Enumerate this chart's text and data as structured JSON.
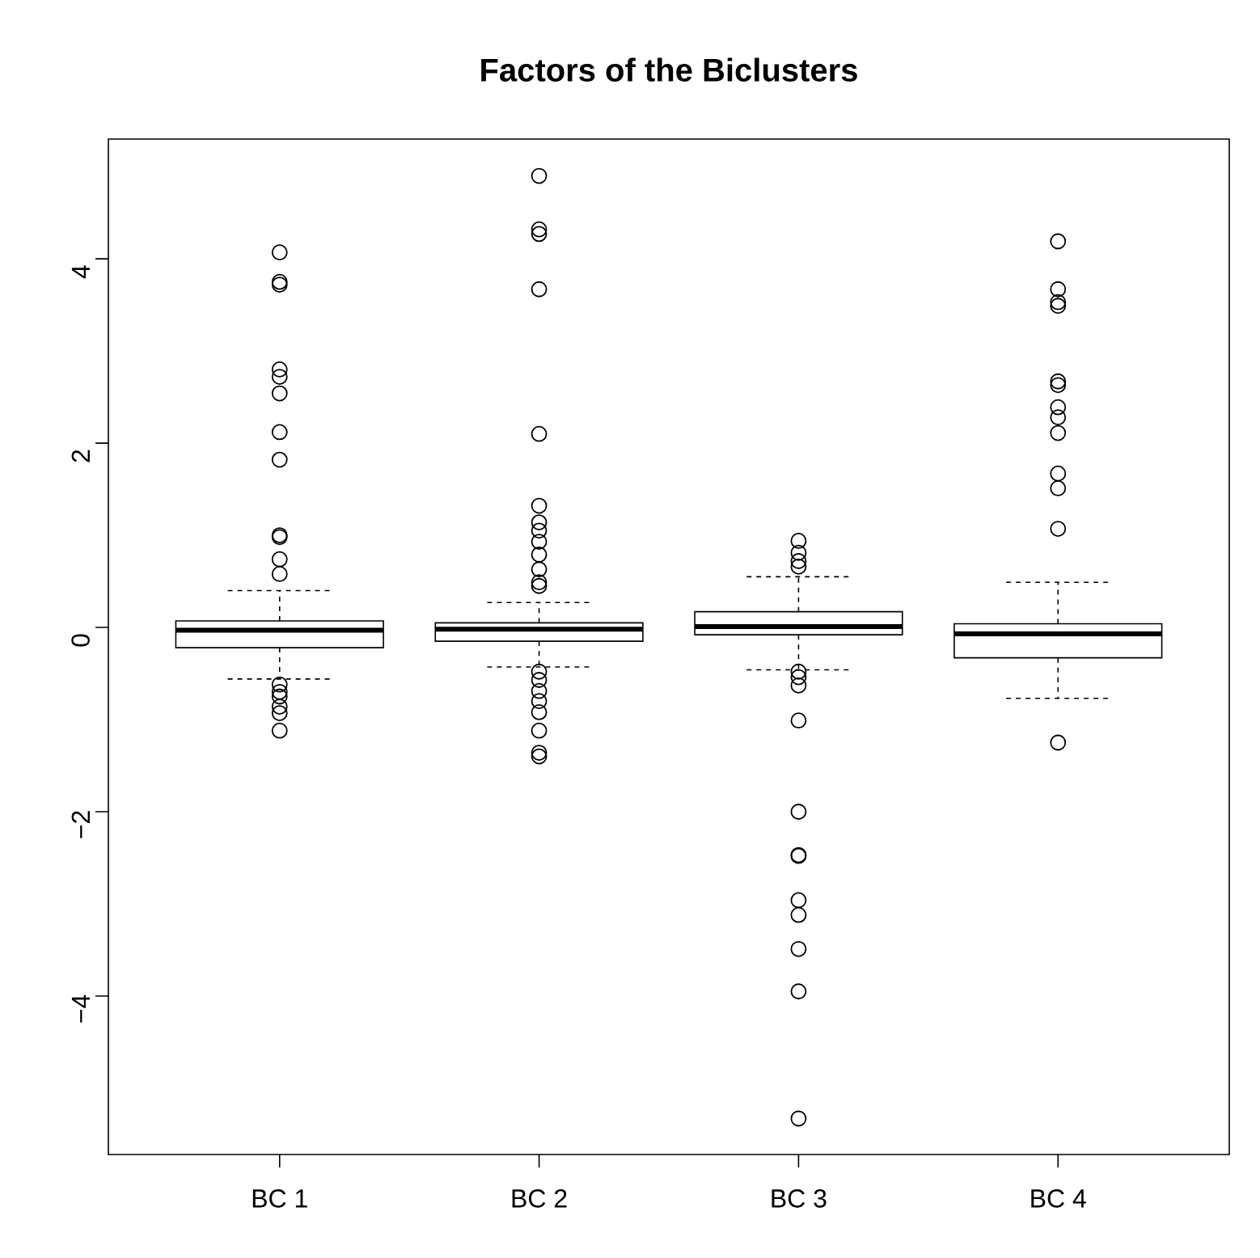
{
  "chart_data": {
    "type": "box",
    "title": "Factors of the Biclusters",
    "categories": [
      "BC 1",
      "BC 2",
      "BC 3",
      "BC 4"
    ],
    "boxes": [
      {
        "low": -0.56,
        "q1": -0.22,
        "median": -0.03,
        "q3": 0.07,
        "high": 0.4,
        "outliers": [
          4.07,
          3.75,
          3.72,
          2.8,
          2.72,
          2.54,
          2.12,
          1.82,
          1.0,
          0.98,
          0.74,
          0.58,
          -0.62,
          -0.7,
          -0.75,
          -0.86,
          -0.93,
          -1.12
        ]
      },
      {
        "low": -0.43,
        "q1": -0.15,
        "median": -0.02,
        "q3": 0.05,
        "high": 0.27,
        "outliers": [
          4.9,
          4.32,
          4.27,
          3.67,
          2.1,
          1.32,
          1.14,
          1.05,
          0.93,
          0.79,
          0.63,
          0.49,
          0.45,
          -0.48,
          -0.57,
          -0.69,
          -0.8,
          -0.92,
          -1.12,
          -1.36,
          -1.4
        ]
      },
      {
        "low": -0.46,
        "q1": -0.08,
        "median": 0.01,
        "q3": 0.17,
        "high": 0.55,
        "outliers": [
          0.94,
          0.81,
          0.72,
          0.66,
          -0.48,
          -0.54,
          -0.63,
          -1.01,
          -2.0,
          -2.47,
          -2.48,
          -2.96,
          -3.12,
          -3.49,
          -3.95,
          -5.33
        ]
      },
      {
        "low": -0.77,
        "q1": -0.33,
        "median": -0.07,
        "q3": 0.04,
        "high": 0.49,
        "outliers": [
          4.19,
          3.67,
          3.53,
          3.49,
          2.67,
          2.63,
          2.39,
          2.28,
          2.11,
          1.67,
          1.51,
          1.07,
          -1.25
        ]
      }
    ],
    "ylim": [
      -5.72,
      5.3
    ],
    "yticks": [
      {
        "value": -4,
        "label": "−4"
      },
      {
        "value": -2,
        "label": "−2"
      },
      0,
      2,
      4
    ]
  }
}
